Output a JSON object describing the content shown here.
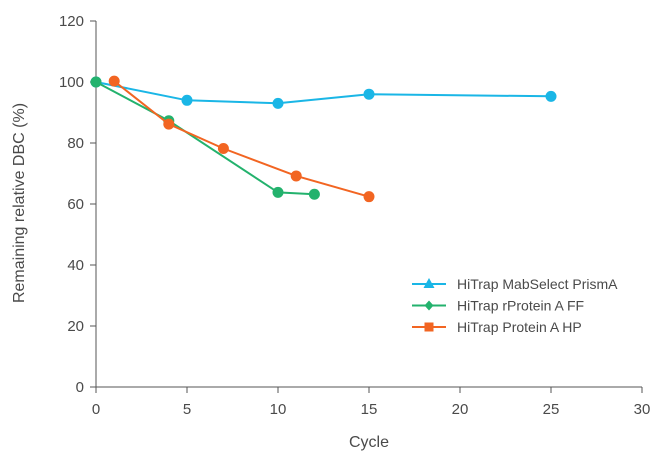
{
  "chart_data": {
    "type": "line",
    "xlabel": "Cycle",
    "ylabel": "Remaining relative DBC (%)",
    "xlim": [
      0,
      30
    ],
    "ylim": [
      0,
      120
    ],
    "xticks": [
      0,
      5,
      10,
      15,
      20,
      25,
      30
    ],
    "yticks": [
      0,
      20,
      40,
      60,
      80,
      100,
      120
    ],
    "grid": false,
    "legend_position": "lower-right",
    "series": [
      {
        "name": "HiTrap MabSelect PrismA",
        "color": "#1ab6e6",
        "marker": "triangle",
        "points": [
          [
            0,
            100
          ],
          [
            5,
            94
          ],
          [
            10,
            93
          ],
          [
            15,
            96
          ],
          [
            25,
            95.3
          ]
        ]
      },
      {
        "name": "HiTrap rProtein A FF",
        "color": "#23b26d",
        "marker": "diamond",
        "points": [
          [
            0,
            100
          ],
          [
            4,
            87.3
          ],
          [
            10,
            63.8
          ],
          [
            12,
            63.2
          ]
        ]
      },
      {
        "name": "HiTrap Protein A HP",
        "color": "#f26522",
        "marker": "square",
        "points": [
          [
            1,
            100.3
          ],
          [
            4,
            86.2
          ],
          [
            7,
            78.2
          ],
          [
            11,
            69.2
          ],
          [
            15,
            62.4
          ]
        ]
      }
    ]
  }
}
